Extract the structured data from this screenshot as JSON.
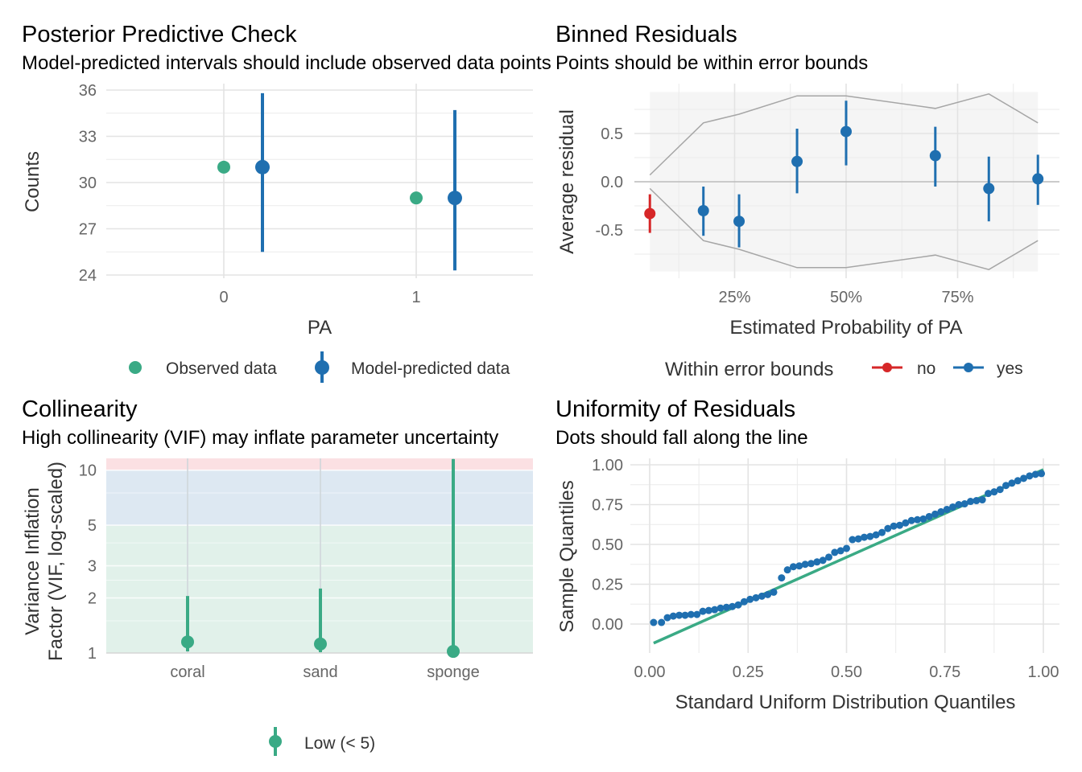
{
  "colors": {
    "observed": "#3aaa85",
    "predicted": "#1f6fb0",
    "no": "#d62728",
    "yes": "#1f6fb0",
    "bound_line": "#a6a6a6",
    "grid": "#ebebeb",
    "band_low": "#e1f1ea",
    "band_moderate": "#dde8f2",
    "band_high": "#fbe0e3",
    "ref_line": "#3aaa85"
  },
  "chart_data": [
    {
      "id": "ppc",
      "type": "scatter",
      "title": "Posterior Predictive Check",
      "subtitle": "Model-predicted intervals should include observed data points",
      "xlabel": "PA",
      "ylabel": "Counts",
      "categories": [
        "0",
        "1"
      ],
      "yticks": [
        "24",
        "27",
        "30",
        "33",
        "36"
      ],
      "ylim": [
        24,
        36
      ],
      "observed": [
        31,
        29
      ],
      "predicted": [
        {
          "category": "0",
          "mid": 31,
          "low": 25.5,
          "high": 35.8
        },
        {
          "category": "1",
          "mid": 29,
          "low": 24.3,
          "high": 34.7
        }
      ],
      "legend": [
        "Observed data",
        "Model-predicted data"
      ]
    },
    {
      "id": "binned",
      "type": "scatter",
      "title": "Binned Residuals",
      "subtitle": "Points should be within error bounds",
      "xlabel": "Estimated Probability of PA",
      "ylabel": "Average residual",
      "xticks": [
        "25%",
        "50%",
        "75%"
      ],
      "yticks": [
        "-0.5",
        "0.0",
        "0.5"
      ],
      "xlim": [
        0.0,
        1.0
      ],
      "ylim": [
        -0.95,
        0.95
      ],
      "points": [
        {
          "x": 0.06,
          "y": -0.33,
          "low": -0.53,
          "high": -0.13,
          "within": "no"
        },
        {
          "x": 0.18,
          "y": -0.3,
          "low": -0.56,
          "high": -0.05,
          "within": "yes"
        },
        {
          "x": 0.26,
          "y": -0.41,
          "low": -0.68,
          "high": -0.13,
          "within": "yes"
        },
        {
          "x": 0.39,
          "y": 0.21,
          "low": -0.12,
          "high": 0.55,
          "within": "yes"
        },
        {
          "x": 0.5,
          "y": 0.52,
          "low": 0.17,
          "high": 0.84,
          "within": "yes"
        },
        {
          "x": 0.7,
          "y": 0.27,
          "low": -0.05,
          "high": 0.57,
          "within": "yes"
        },
        {
          "x": 0.82,
          "y": -0.07,
          "low": -0.41,
          "high": 0.26,
          "within": "yes"
        },
        {
          "x": 0.93,
          "y": 0.03,
          "low": -0.24,
          "high": 0.28,
          "within": "yes"
        }
      ],
      "bounds_x": [
        0.06,
        0.18,
        0.26,
        0.39,
        0.5,
        0.7,
        0.82,
        0.93
      ],
      "bounds_upper": [
        0.07,
        0.61,
        0.7,
        0.89,
        0.89,
        0.76,
        0.91,
        0.61
      ],
      "bounds_lower": [
        -0.07,
        -0.61,
        -0.7,
        -0.89,
        -0.89,
        -0.76,
        -0.91,
        -0.61
      ],
      "legend_title": "Within error bounds",
      "legend": [
        "no",
        "yes"
      ]
    },
    {
      "id": "collinearity",
      "type": "scatter",
      "title": "Collinearity",
      "subtitle": "High collinearity (VIF) may inflate parameter uncertainty",
      "ylabel": "Variance Inflation Factor (VIF, log-scaled)",
      "ylabel_lines": [
        "Variance Inflation",
        "Factor (VIF, log-scaled)"
      ],
      "categories": [
        "coral",
        "sand",
        "sponge"
      ],
      "yticks": [
        "1",
        "2",
        "3",
        "5",
        "10"
      ],
      "ylim": [
        1,
        11.6
      ],
      "yscale": "log",
      "points": [
        {
          "category": "coral",
          "vif": 1.15,
          "low": 1.02,
          "high": 2.05
        },
        {
          "category": "sand",
          "vif": 1.12,
          "low": 1.01,
          "high": 2.25
        },
        {
          "category": "sponge",
          "vif": 1.02,
          "low": 1.0,
          "high": 11.5
        }
      ],
      "legend": [
        "Low (< 5)"
      ]
    },
    {
      "id": "qq",
      "type": "scatter",
      "title": "Uniformity of Residuals",
      "subtitle": "Dots should fall along the line",
      "xlabel": "Standard Uniform Distribution Quantiles",
      "ylabel": "Sample Quantiles",
      "xticks": [
        "0.00",
        "0.25",
        "0.50",
        "0.75",
        "1.00"
      ],
      "yticks": [
        "0.00",
        "0.25",
        "0.50",
        "0.75",
        "1.00"
      ],
      "xlim": [
        0,
        1
      ],
      "ylim": [
        0,
        1
      ],
      "reference_line": {
        "x": [
          0.01,
          1.0
        ],
        "y": [
          -0.12,
          0.97
        ]
      },
      "points_x": [
        0.01,
        0.03,
        0.045,
        0.06,
        0.075,
        0.09,
        0.105,
        0.12,
        0.135,
        0.15,
        0.165,
        0.18,
        0.195,
        0.21,
        0.225,
        0.24,
        0.255,
        0.27,
        0.285,
        0.3,
        0.315,
        0.335,
        0.35,
        0.365,
        0.38,
        0.395,
        0.41,
        0.425,
        0.44,
        0.455,
        0.47,
        0.485,
        0.5,
        0.515,
        0.53,
        0.545,
        0.56,
        0.575,
        0.59,
        0.605,
        0.62,
        0.635,
        0.65,
        0.665,
        0.68,
        0.695,
        0.71,
        0.725,
        0.74,
        0.755,
        0.77,
        0.785,
        0.8,
        0.815,
        0.83,
        0.845,
        0.86,
        0.875,
        0.89,
        0.905,
        0.92,
        0.935,
        0.95,
        0.965,
        0.98,
        0.995
      ],
      "points_y": [
        0.01,
        0.01,
        0.04,
        0.05,
        0.055,
        0.055,
        0.06,
        0.06,
        0.08,
        0.085,
        0.09,
        0.1,
        0.105,
        0.11,
        0.12,
        0.14,
        0.155,
        0.165,
        0.175,
        0.185,
        0.2,
        0.29,
        0.34,
        0.36,
        0.365,
        0.375,
        0.38,
        0.39,
        0.4,
        0.42,
        0.45,
        0.46,
        0.475,
        0.53,
        0.535,
        0.545,
        0.55,
        0.56,
        0.575,
        0.6,
        0.615,
        0.62,
        0.635,
        0.65,
        0.655,
        0.66,
        0.675,
        0.69,
        0.705,
        0.72,
        0.735,
        0.75,
        0.755,
        0.77,
        0.775,
        0.78,
        0.82,
        0.83,
        0.845,
        0.87,
        0.885,
        0.9,
        0.915,
        0.93,
        0.94,
        0.945
      ]
    }
  ]
}
